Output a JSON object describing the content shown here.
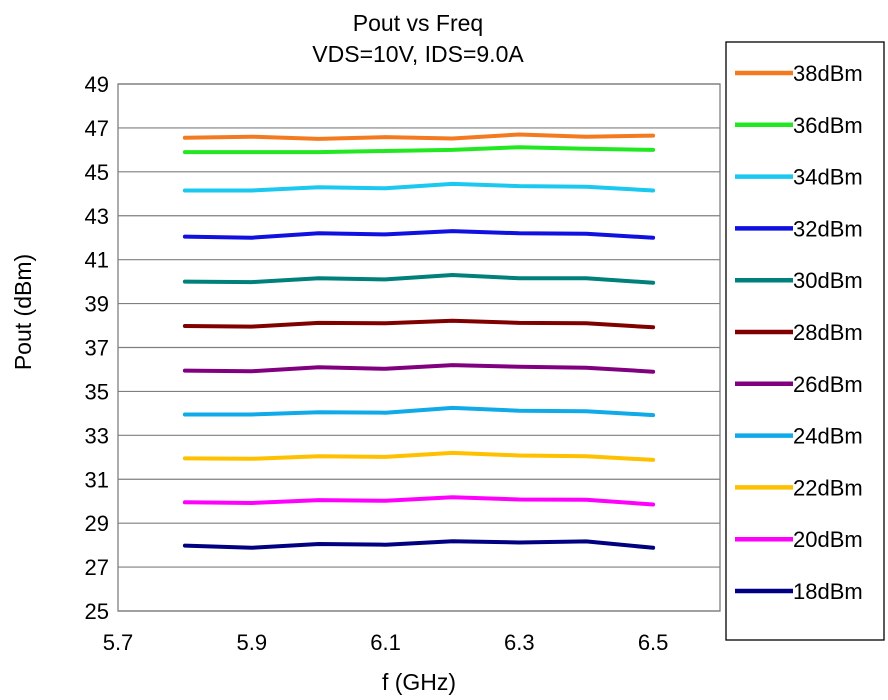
{
  "chart_data": {
    "type": "line",
    "title": "Pout vs Freq",
    "subtitle": "VDS=10V, IDS=9.0A",
    "xlabel": "f (GHz)",
    "ylabel": "Pout (dBm)",
    "xlim": [
      5.7,
      6.6
    ],
    "ylim": [
      25,
      49
    ],
    "xticks": [
      "5.7",
      "5.9",
      "6.1",
      "6.3",
      "6.5"
    ],
    "yticks": [
      "49",
      "47",
      "45",
      "43",
      "41",
      "39",
      "37",
      "35",
      "33",
      "31",
      "29",
      "27",
      "25"
    ],
    "grid": "horizontal",
    "legend_position": "right",
    "x": [
      5.8,
      5.9,
      6.0,
      6.1,
      6.2,
      6.3,
      6.4,
      6.5
    ],
    "series": [
      {
        "name": "38dBm",
        "color": "#F47A20",
        "values": [
          46.55,
          46.6,
          46.5,
          46.58,
          46.52,
          46.7,
          46.6,
          46.65
        ]
      },
      {
        "name": "36dBm",
        "color": "#22E822",
        "values": [
          45.9,
          45.9,
          45.9,
          45.95,
          46.0,
          46.12,
          46.05,
          46.0
        ]
      },
      {
        "name": "34dBm",
        "color": "#1AC8F0",
        "values": [
          44.15,
          44.15,
          44.3,
          44.25,
          44.45,
          44.35,
          44.32,
          44.15
        ]
      },
      {
        "name": "32dBm",
        "color": "#1010E0",
        "values": [
          42.05,
          42.0,
          42.2,
          42.15,
          42.3,
          42.2,
          42.18,
          42.0
        ]
      },
      {
        "name": "30dBm",
        "color": "#00807A",
        "values": [
          40.0,
          39.98,
          40.15,
          40.1,
          40.3,
          40.15,
          40.15,
          39.95
        ]
      },
      {
        "name": "28dBm",
        "color": "#800000",
        "values": [
          37.98,
          37.95,
          38.12,
          38.1,
          38.22,
          38.12,
          38.1,
          37.92
        ]
      },
      {
        "name": "26dBm",
        "color": "#800080",
        "values": [
          35.95,
          35.92,
          36.1,
          36.03,
          36.2,
          36.12,
          36.08,
          35.9
        ]
      },
      {
        "name": "24dBm",
        "color": "#10AAE8",
        "values": [
          33.95,
          33.95,
          34.05,
          34.03,
          34.25,
          34.12,
          34.1,
          33.92
        ]
      },
      {
        "name": "22dBm",
        "color": "#FFC000",
        "values": [
          31.95,
          31.93,
          32.05,
          32.02,
          32.2,
          32.08,
          32.05,
          31.88
        ]
      },
      {
        "name": "20dBm",
        "color": "#FF00FF",
        "values": [
          29.95,
          29.92,
          30.05,
          30.02,
          30.18,
          30.08,
          30.07,
          29.85
        ]
      },
      {
        "name": "18dBm",
        "color": "#000080",
        "values": [
          27.98,
          27.88,
          28.05,
          28.02,
          28.18,
          28.12,
          28.17,
          27.88
        ]
      }
    ]
  }
}
